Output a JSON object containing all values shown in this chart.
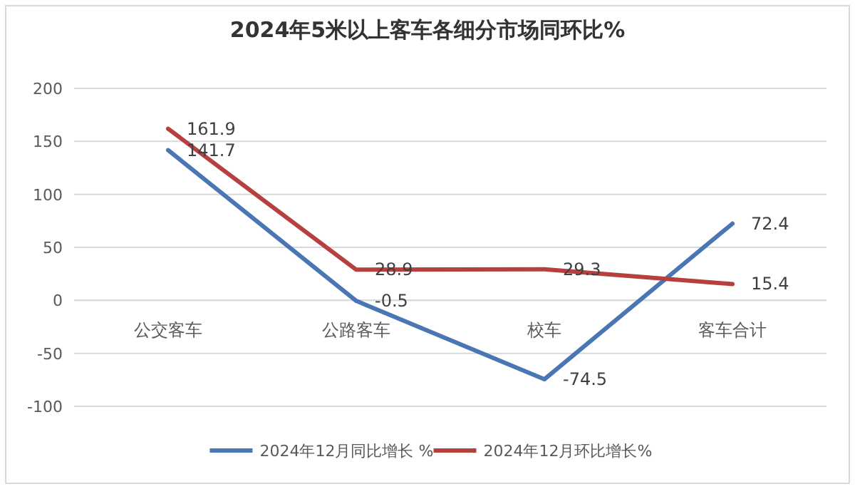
{
  "chart_data": {
    "type": "line",
    "title": "2024年5米以上客车各细分市场同环比%",
    "categories": [
      "公交客车",
      "公路客车",
      "校车",
      "客车合计"
    ],
    "series": [
      {
        "name": "2024年12月同比增长 %",
        "color": "#4a76b4",
        "values": [
          141.7,
          -0.5,
          -74.5,
          72.4
        ]
      },
      {
        "name": "2024年12月环比增长%",
        "color": "#b5403d",
        "values": [
          161.9,
          28.9,
          29.3,
          15.4
        ]
      }
    ],
    "ylim": [
      -100,
      200
    ],
    "yticks": [
      -100,
      -50,
      0,
      50,
      100,
      150,
      200
    ],
    "grid": "y",
    "legend": "bottom",
    "data_labels": true,
    "marker": "none",
    "line_style": "solid"
  }
}
